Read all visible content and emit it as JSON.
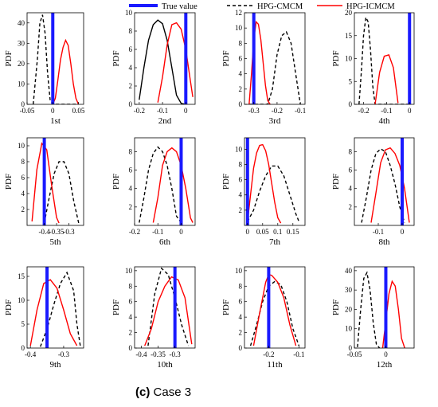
{
  "legend": {
    "true_value": "True value",
    "hpg_cmcm": "HPG-CMCM",
    "hpg_icmcm": "HPG-ICMCM"
  },
  "colors": {
    "true_value": "#1a1aff",
    "hpg_cmcm": "#000000",
    "hpg_icmcm": "#ff0000"
  },
  "caption": {
    "label": "(c)",
    "text": "Case 3"
  },
  "chart_data": [
    {
      "type": "line",
      "title": "1st",
      "ylabel": "PDF",
      "xlim": [
        -0.05,
        0.06
      ],
      "ylim": [
        0,
        45
      ],
      "xticks": [
        -0.05,
        0,
        0.05
      ],
      "xticklabels": [
        "-0.05",
        "0",
        "0.05"
      ],
      "yticks": [
        0,
        10,
        20,
        30,
        40
      ],
      "yticklabels": [
        "0",
        "10",
        "20",
        "30",
        "40"
      ],
      "true_value": 0,
      "series": [
        {
          "name": "HPG-CMCM",
          "style": "dashed",
          "x": [
            -0.038,
            -0.03,
            -0.025,
            -0.02,
            -0.015,
            -0.01,
            -0.005,
            0,
            0.005,
            0.01,
            0.02,
            0.03,
            0.04,
            0.05
          ],
          "y": [
            0,
            22,
            40,
            44,
            35,
            15,
            2,
            0,
            0,
            0,
            0,
            0,
            0,
            0
          ]
        },
        {
          "name": "HPG-ICMCM",
          "style": "solid",
          "x": [
            0,
            0.005,
            0.01,
            0.015,
            0.02,
            0.025,
            0.03,
            0.035,
            0.04,
            0.045,
            0.05
          ],
          "y": [
            0,
            3,
            12,
            22,
            28,
            31.5,
            29,
            20,
            10,
            3,
            0
          ]
        }
      ]
    },
    {
      "type": "line",
      "title": "2nd",
      "ylabel": "PDF",
      "xlim": [
        -0.22,
        0.04
      ],
      "ylim": [
        0,
        10
      ],
      "xticks": [
        -0.2,
        -0.1,
        0
      ],
      "xticklabels": [
        "-0.2",
        "-0.1",
        "0"
      ],
      "yticks": [
        0,
        2,
        4,
        6,
        8,
        10
      ],
      "yticklabels": [
        "0",
        "2",
        "4",
        "6",
        "8",
        "10"
      ],
      "true_value": 0,
      "series": [
        {
          "name": "HPG-CMCM",
          "style": "solid",
          "x": [
            -0.2,
            -0.18,
            -0.16,
            -0.14,
            -0.12,
            -0.1,
            -0.08,
            -0.06,
            -0.04,
            -0.02,
            0
          ],
          "y": [
            0.5,
            4,
            7,
            8.7,
            9.2,
            8.8,
            7,
            4,
            1,
            0.1,
            0
          ]
        },
        {
          "name": "HPG-ICMCM",
          "style": "solid",
          "x": [
            -0.12,
            -0.1,
            -0.08,
            -0.06,
            -0.04,
            -0.02,
            0,
            0.02,
            0.03
          ],
          "y": [
            0.2,
            3,
            6.5,
            8.7,
            8.9,
            8.2,
            6,
            2.5,
            0.8
          ]
        }
      ]
    },
    {
      "type": "line",
      "title": "3rd",
      "ylabel": "PDF",
      "xlim": [
        -0.34,
        -0.08
      ],
      "ylim": [
        0,
        12
      ],
      "xticks": [
        -0.3,
        -0.2,
        -0.1
      ],
      "xticklabels": [
        "-0.3",
        "-0.2",
        "-0.1"
      ],
      "yticks": [
        0,
        2,
        4,
        6,
        8,
        10,
        12
      ],
      "yticklabels": [
        "0",
        "2",
        "4",
        "6",
        "8",
        "10",
        "12"
      ],
      "true_value": -0.3,
      "series": [
        {
          "name": "HPG-CMCM",
          "style": "dashed",
          "x": [
            -0.32,
            -0.24,
            -0.22,
            -0.2,
            -0.18,
            -0.16,
            -0.14,
            -0.12,
            -0.1
          ],
          "y": [
            0,
            0,
            2,
            6.5,
            9,
            9.5,
            8,
            4,
            0
          ]
        },
        {
          "name": "HPG-ICMCM",
          "style": "solid",
          "x": [
            -0.32,
            -0.31,
            -0.3,
            -0.29,
            -0.28,
            -0.27,
            -0.26,
            -0.25,
            -0.24,
            -0.23
          ],
          "y": [
            0,
            4,
            8.5,
            10.8,
            10.5,
            8.5,
            5.5,
            2.5,
            0.5,
            0
          ]
        }
      ]
    },
    {
      "type": "line",
      "title": "4th",
      "ylabel": "PDF",
      "xlim": [
        -0.24,
        0.02
      ],
      "ylim": [
        0,
        20
      ],
      "xticks": [
        -0.2,
        -0.1,
        0
      ],
      "xticklabels": [
        "-0.2",
        "-0.1",
        "0"
      ],
      "yticks": [
        0,
        5,
        10,
        15,
        20
      ],
      "yticklabels": [
        "0",
        "5",
        "10",
        "15",
        "20"
      ],
      "true_value": 0,
      "series": [
        {
          "name": "HPG-CMCM",
          "style": "dashed",
          "x": [
            -0.22,
            -0.21,
            -0.2,
            -0.19,
            -0.18,
            -0.17,
            -0.16,
            -0.15,
            -0.12,
            0
          ],
          "y": [
            0,
            7,
            15,
            19,
            18,
            12,
            4,
            0,
            0,
            0
          ]
        },
        {
          "name": "HPG-ICMCM",
          "style": "solid",
          "x": [
            -0.15,
            -0.13,
            -0.11,
            -0.09,
            -0.07,
            -0.05
          ],
          "y": [
            0,
            7,
            10.5,
            10.8,
            8,
            0.3
          ]
        }
      ]
    },
    {
      "type": "line",
      "title": "5th",
      "ylabel": "PDF",
      "xlim": [
        -0.47,
        -0.24
      ],
      "ylim": [
        0,
        11
      ],
      "xticks": [
        -0.4,
        -0.35,
        -0.3
      ],
      "xticklabels": [
        "-0.4",
        "-0.35",
        "-0.3"
      ],
      "yticks": [
        2,
        4,
        6,
        8,
        10
      ],
      "yticklabels": [
        "2",
        "4",
        "6",
        "8",
        "10"
      ],
      "true_value": -0.4,
      "series": [
        {
          "name": "HPG-CMCM",
          "style": "dashed",
          "x": [
            -0.4,
            -0.38,
            -0.36,
            -0.34,
            -0.32,
            -0.3,
            -0.28,
            -0.26
          ],
          "y": [
            0.3,
            3.5,
            6.5,
            8,
            8,
            6.5,
            3,
            0.3
          ]
        },
        {
          "name": "HPG-ICMCM",
          "style": "solid",
          "x": [
            -0.45,
            -0.43,
            -0.41,
            -0.39,
            -0.37,
            -0.35,
            -0.34
          ],
          "y": [
            0.5,
            7,
            10.3,
            9.5,
            5,
            1,
            0.3
          ]
        }
      ]
    },
    {
      "type": "line",
      "title": "6th",
      "ylabel": "PDF",
      "xlim": [
        -0.2,
        0.06
      ],
      "ylim": [
        0,
        9.5
      ],
      "xticks": [
        -0.2,
        -0.1,
        0
      ],
      "xticklabels": [
        "-0.2",
        "-0.1",
        "0"
      ],
      "yticks": [
        2,
        4,
        6,
        8
      ],
      "yticklabels": [
        "2",
        "4",
        "6",
        "8"
      ],
      "true_value": 0,
      "series": [
        {
          "name": "HPG-CMCM",
          "style": "dashed",
          "x": [
            -0.18,
            -0.16,
            -0.14,
            -0.12,
            -0.1,
            -0.08,
            -0.06,
            -0.04,
            -0.02,
            0
          ],
          "y": [
            0.3,
            3,
            6,
            7.8,
            8.5,
            8,
            6.5,
            4,
            1,
            0.3
          ]
        },
        {
          "name": "HPG-ICMCM",
          "style": "solid",
          "x": [
            -0.12,
            -0.1,
            -0.08,
            -0.06,
            -0.04,
            -0.02,
            0,
            0.02,
            0.04,
            0.05
          ],
          "y": [
            0.3,
            3,
            6.5,
            8,
            8.4,
            8,
            6.5,
            4,
            0.8,
            0.3
          ]
        }
      ]
    },
    {
      "type": "line",
      "title": "7th",
      "ylabel": "PDF",
      "xlim": [
        -0.01,
        0.19
      ],
      "ylim": [
        0,
        11.5
      ],
      "xticks": [
        0,
        0.05,
        0.1,
        0.15
      ],
      "xticklabels": [
        "0",
        "0.05",
        "0.1",
        "0.15"
      ],
      "yticks": [
        2,
        4,
        6,
        8,
        10
      ],
      "yticklabels": [
        "2",
        "4",
        "6",
        "8",
        "10"
      ],
      "true_value": 0,
      "series": [
        {
          "name": "HPG-CMCM",
          "style": "dashed",
          "x": [
            0,
            0.02,
            0.04,
            0.06,
            0.08,
            0.1,
            0.12,
            0.14,
            0.16,
            0.17
          ],
          "y": [
            0.5,
            2,
            4.5,
            6.5,
            7.8,
            7.8,
            6.5,
            4,
            1.5,
            0.5
          ]
        },
        {
          "name": "HPG-ICMCM",
          "style": "solid",
          "x": [
            0,
            0.01,
            0.02,
            0.03,
            0.04,
            0.05,
            0.06,
            0.07,
            0.08,
            0.09,
            0.1,
            0.11
          ],
          "y": [
            0.5,
            4,
            7.5,
            9.5,
            10.5,
            10.6,
            9.8,
            8,
            5.5,
            3,
            1,
            0.3
          ]
        }
      ]
    },
    {
      "type": "line",
      "title": "8th",
      "ylabel": "PDF",
      "xlim": [
        -0.2,
        0.05
      ],
      "ylim": [
        0,
        9.5
      ],
      "xticks": [
        -0.1,
        0
      ],
      "xticklabels": [
        "-0.1",
        "0"
      ],
      "yticks": [
        2,
        4,
        6,
        8
      ],
      "yticklabels": [
        "2",
        "4",
        "6",
        "8"
      ],
      "true_value": 0,
      "series": [
        {
          "name": "HPG-CMCM",
          "style": "dashed",
          "x": [
            -0.17,
            -0.15,
            -0.13,
            -0.11,
            -0.09,
            -0.07,
            -0.05,
            -0.03,
            -0.01,
            0.01
          ],
          "y": [
            0.3,
            3,
            6,
            7.8,
            8.3,
            8,
            6.5,
            4.5,
            2,
            0.3
          ]
        },
        {
          "name": "HPG-ICMCM",
          "style": "solid",
          "x": [
            -0.13,
            -0.11,
            -0.09,
            -0.07,
            -0.05,
            -0.03,
            -0.01,
            0.01,
            0.03
          ],
          "y": [
            0.3,
            3.5,
            6.8,
            8.2,
            8.4,
            7.8,
            6.5,
            4,
            0.3
          ]
        }
      ]
    },
    {
      "type": "line",
      "title": "9th",
      "ylabel": "PDF",
      "xlim": [
        -0.41,
        -0.24
      ],
      "ylim": [
        0,
        17
      ],
      "xticks": [
        -0.4,
        -0.3
      ],
      "xticklabels": [
        "-0.4",
        "-0.3"
      ],
      "yticks": [
        0,
        5,
        10,
        15
      ],
      "yticklabels": [
        "0",
        "5",
        "10",
        "15"
      ],
      "true_value": -0.35,
      "series": [
        {
          "name": "HPG-CMCM",
          "style": "dashed",
          "x": [
            -0.37,
            -0.35,
            -0.33,
            -0.31,
            -0.29,
            -0.27,
            -0.26,
            -0.25
          ],
          "y": [
            0.3,
            4,
            9,
            13.5,
            15.8,
            12,
            5,
            0.5
          ]
        },
        {
          "name": "HPG-ICMCM",
          "style": "solid",
          "x": [
            -0.4,
            -0.38,
            -0.36,
            -0.34,
            -0.32,
            -0.3,
            -0.28,
            -0.26
          ],
          "y": [
            0.5,
            8,
            13.5,
            14.3,
            12.5,
            8,
            3,
            0.5
          ]
        }
      ]
    },
    {
      "type": "line",
      "title": "10th",
      "ylabel": "PDF",
      "xlim": [
        -0.42,
        -0.24
      ],
      "ylim": [
        0,
        10.5
      ],
      "xticks": [
        -0.4,
        -0.35,
        -0.3
      ],
      "xticklabels": [
        "-0.4",
        "-0.35",
        "-0.3"
      ],
      "yticks": [
        0,
        2,
        4,
        6,
        8,
        10
      ],
      "yticklabels": [
        "0",
        "2",
        "4",
        "6",
        "8",
        "10"
      ],
      "true_value": -0.3,
      "series": [
        {
          "name": "HPG-CMCM",
          "style": "dashed",
          "x": [
            -0.38,
            -0.36,
            -0.34,
            -0.32,
            -0.3,
            -0.28,
            -0.26
          ],
          "y": [
            0.3,
            7,
            10.3,
            9.5,
            6.5,
            3,
            0.3
          ]
        },
        {
          "name": "HPG-ICMCM",
          "style": "solid",
          "x": [
            -0.39,
            -0.37,
            -0.35,
            -0.33,
            -0.31,
            -0.29,
            -0.27,
            -0.25
          ],
          "y": [
            0.3,
            2.5,
            6,
            8,
            9.2,
            8.8,
            6.5,
            0.5
          ]
        }
      ]
    },
    {
      "type": "line",
      "title": "11th",
      "ylabel": "PDF",
      "xlim": [
        -0.28,
        -0.08
      ],
      "ylim": [
        0,
        10.5
      ],
      "xticks": [
        -0.2,
        -0.1
      ],
      "xticklabels": [
        "-0.2",
        "-0.1"
      ],
      "yticks": [
        0,
        2,
        4,
        6,
        8,
        10
      ],
      "yticklabels": [
        "0",
        "2",
        "4",
        "6",
        "8",
        "10"
      ],
      "true_value": -0.2,
      "series": [
        {
          "name": "HPG-CMCM",
          "style": "dashed",
          "x": [
            -0.26,
            -0.24,
            -0.22,
            -0.2,
            -0.18,
            -0.16,
            -0.14,
            -0.12,
            -0.1
          ],
          "y": [
            0.3,
            3,
            6,
            8,
            8.6,
            8.2,
            6,
            2.5,
            0.3
          ]
        },
        {
          "name": "HPG-ICMCM",
          "style": "solid",
          "x": [
            -0.25,
            -0.23,
            -0.21,
            -0.2,
            -0.19,
            -0.17,
            -0.15,
            -0.13,
            -0.11
          ],
          "y": [
            0.3,
            4.5,
            8.5,
            9.5,
            9.4,
            8.5,
            6.5,
            3,
            0.3
          ]
        }
      ]
    },
    {
      "type": "line",
      "title": "12th",
      "ylabel": "PDF",
      "xlim": [
        -0.05,
        0.045
      ],
      "ylim": [
        0,
        42
      ],
      "xticks": [
        -0.05,
        0
      ],
      "xticklabels": [
        "-0.05",
        "0"
      ],
      "yticks": [
        0,
        10,
        20,
        30,
        40
      ],
      "yticklabels": [
        "0",
        "10",
        "20",
        "30",
        "40"
      ],
      "true_value": 0,
      "series": [
        {
          "name": "HPG-CMCM",
          "style": "dashed",
          "x": [
            -0.045,
            -0.04,
            -0.035,
            -0.03,
            -0.025,
            -0.02,
            -0.015,
            -0.01
          ],
          "y": [
            0.5,
            20,
            36,
            39,
            30,
            13,
            2,
            0
          ]
        },
        {
          "name": "HPG-ICMCM",
          "style": "solid",
          "x": [
            -0.005,
            0,
            0.005,
            0.01,
            0.015,
            0.02,
            0.025,
            0.03
          ],
          "y": [
            0,
            14,
            28,
            34.5,
            32,
            20,
            5,
            0
          ]
        }
      ]
    }
  ]
}
